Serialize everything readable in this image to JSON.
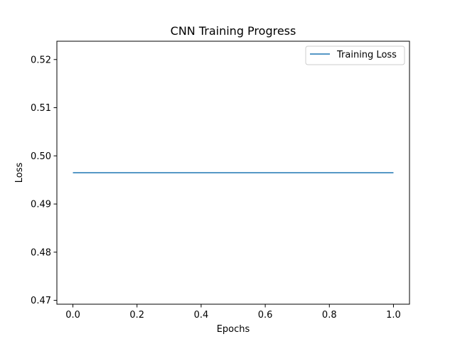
{
  "chart_data": {
    "type": "line",
    "title": "CNN Training Progress",
    "xlabel": "Epochs",
    "ylabel": "Loss",
    "xlim": [
      -0.05,
      1.05
    ],
    "ylim": [
      0.4692,
      0.5238
    ],
    "xticks": [
      0.0,
      0.2,
      0.4,
      0.6,
      0.8,
      1.0
    ],
    "xtick_labels": [
      "0.0",
      "0.2",
      "0.4",
      "0.6",
      "0.8",
      "1.0"
    ],
    "yticks": [
      0.47,
      0.48,
      0.49,
      0.5,
      0.51,
      0.52
    ],
    "ytick_labels": [
      "0.47",
      "0.48",
      "0.49",
      "0.50",
      "0.51",
      "0.52"
    ],
    "grid": false,
    "legend_position": "top-right",
    "series": [
      {
        "name": "Training Loss",
        "color": "#1f77b4",
        "x": [
          0,
          1
        ],
        "y": [
          0.4965,
          0.4965
        ]
      }
    ]
  }
}
